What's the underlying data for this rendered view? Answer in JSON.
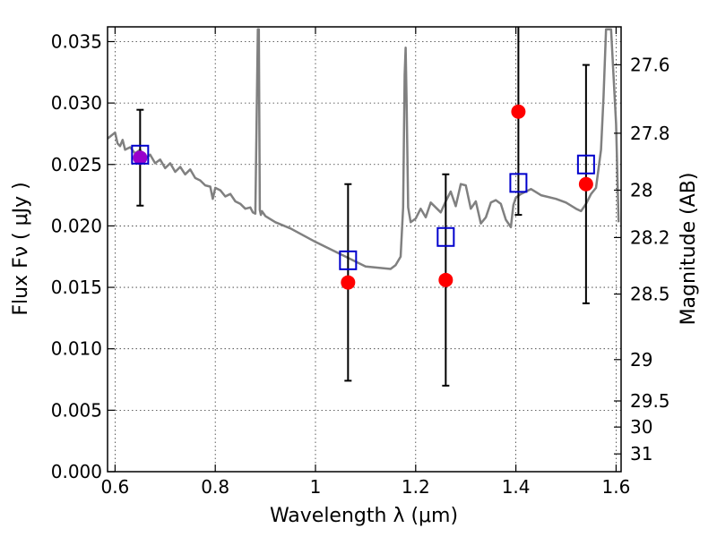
{
  "chart_data": {
    "type": "scatter",
    "xlabel": "Wavelength  λ (μm)",
    "ylabel": "Flux  Fν  ( μJy )",
    "ylabel_right": "Magnitude (AB)",
    "xlim": [
      0.585,
      1.61
    ],
    "ylim": [
      0,
      0.0362
    ],
    "x_ticks": [
      "0.6",
      "0.8",
      "1",
      "1.2",
      "1.4",
      "1.6"
    ],
    "x_tick_values": [
      0.6,
      0.8,
      1.0,
      1.2,
      1.4,
      1.6
    ],
    "y_ticks": [
      "0.000",
      "0.005",
      "0.010",
      "0.015",
      "0.020",
      "0.025",
      "0.030",
      "0.035"
    ],
    "y_tick_values": [
      0,
      0.005,
      0.01,
      0.015,
      0.02,
      0.025,
      0.03,
      0.035
    ],
    "mag_ticks": [
      "27.6",
      "27.8",
      "28",
      "28.2",
      "28.5",
      "29",
      "29.5",
      "30",
      "31"
    ],
    "mag_tick_values": [
      27.6,
      27.8,
      28.0,
      28.2,
      28.5,
      29.0,
      29.5,
      30.0,
      31.0
    ],
    "grid": true,
    "colors": {
      "model": "#808080",
      "observed": "#ff0000",
      "model_photometry": "#0000cc",
      "errorbar": "#000000",
      "overlap": "#9900cc"
    },
    "series": [
      {
        "marker": "line",
        "x": [
          0.585,
          0.6,
          0.605,
          0.61,
          0.615,
          0.62,
          0.63,
          0.64,
          0.65,
          0.66,
          0.67,
          0.68,
          0.69,
          0.7,
          0.71,
          0.72,
          0.73,
          0.74,
          0.75,
          0.76,
          0.77,
          0.78,
          0.79,
          0.795,
          0.8,
          0.81,
          0.82,
          0.83,
          0.84,
          0.85,
          0.86,
          0.87,
          0.875,
          0.88,
          0.885,
          0.887,
          0.889,
          0.891,
          0.893,
          0.9,
          0.92,
          0.95,
          1.0,
          1.05,
          1.1,
          1.15,
          1.16,
          1.17,
          1.175,
          1.178,
          1.18,
          1.182,
          1.185,
          1.19,
          1.2,
          1.21,
          1.22,
          1.23,
          1.25,
          1.26,
          1.27,
          1.28,
          1.29,
          1.3,
          1.31,
          1.32,
          1.33,
          1.34,
          1.35,
          1.36,
          1.37,
          1.38,
          1.39,
          1.395,
          1.4,
          1.41,
          1.42,
          1.43,
          1.45,
          1.48,
          1.5,
          1.52,
          1.53,
          1.54,
          1.55,
          1.56,
          1.57,
          1.575,
          1.58,
          1.585,
          1.59,
          1.6,
          1.605
        ],
        "y": [
          0.0271,
          0.0276,
          0.0267,
          0.0265,
          0.027,
          0.0262,
          0.0264,
          0.0259,
          0.0262,
          0.0255,
          0.0258,
          0.0251,
          0.0254,
          0.0247,
          0.0251,
          0.0244,
          0.0248,
          0.0242,
          0.0246,
          0.0239,
          0.0237,
          0.0233,
          0.0232,
          0.0222,
          0.0231,
          0.0229,
          0.0224,
          0.0226,
          0.022,
          0.0218,
          0.0214,
          0.0215,
          0.0211,
          0.021,
          0.036,
          0.036,
          0.0213,
          0.0209,
          0.0212,
          0.0208,
          0.0203,
          0.0198,
          0.0187,
          0.0177,
          0.0167,
          0.0165,
          0.0168,
          0.0175,
          0.0215,
          0.0323,
          0.0345,
          0.03,
          0.0215,
          0.0203,
          0.0206,
          0.0214,
          0.0207,
          0.0219,
          0.0211,
          0.022,
          0.0228,
          0.0216,
          0.0234,
          0.0233,
          0.0214,
          0.022,
          0.0202,
          0.0207,
          0.0219,
          0.0221,
          0.0218,
          0.0205,
          0.0199,
          0.0217,
          0.0223,
          0.0226,
          0.0228,
          0.023,
          0.0225,
          0.0222,
          0.0219,
          0.0214,
          0.0212,
          0.0218,
          0.0226,
          0.0231,
          0.0262,
          0.0305,
          0.036,
          0.036,
          0.036,
          0.0283,
          0.0203
        ]
      },
      {
        "marker": "circle",
        "x": [
          0.65,
          1.065,
          1.26,
          1.405,
          1.54
        ],
        "y": [
          0.02555,
          0.0154,
          0.0156,
          0.0293,
          0.0234
        ],
        "yerr": [
          0.0039,
          0.008,
          0.0086,
          0.0084,
          0.0097
        ]
      },
      {
        "marker": "square",
        "x": [
          0.65,
          1.065,
          1.26,
          1.405,
          1.54
        ],
        "y": [
          0.0258,
          0.0172,
          0.0191,
          0.0235,
          0.025
        ]
      }
    ]
  }
}
